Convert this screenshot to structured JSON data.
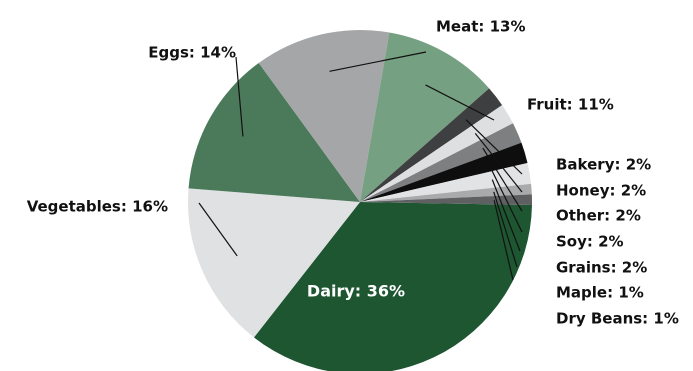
{
  "chart_data": {
    "type": "pie",
    "title": "",
    "slices": [
      {
        "label": "Dairy: 36%",
        "value": 36,
        "color": "#1e5632"
      },
      {
        "label": "Vegetables: 16%",
        "value": 16,
        "color": "#e0e1e2"
      },
      {
        "label": "Eggs: 14%",
        "value": 14,
        "color": "#4b7a5b"
      },
      {
        "label": "Meat: 13%",
        "value": 13,
        "color": "#a5a6a8"
      },
      {
        "label": "Fruit: 11%",
        "value": 11,
        "color": "#76a082"
      },
      {
        "label": "Bakery: 2%",
        "value": 2,
        "color": "#3e3f41"
      },
      {
        "label": "Honey: 2%",
        "value": 2,
        "color": "#dedfe0"
      },
      {
        "label": "Other: 2%",
        "value": 2,
        "color": "#7e7f81"
      },
      {
        "label": "Soy: 2%",
        "value": 2,
        "color": "#0e0e0e"
      },
      {
        "label": "Grains: 2%",
        "value": 2,
        "color": "#e2e3e4"
      },
      {
        "label": "Maple: 1%",
        "value": 1,
        "color": "#a9aaab"
      },
      {
        "label": "Dry Beans: 1%",
        "value": 1,
        "color": "#5f6062"
      }
    ]
  }
}
